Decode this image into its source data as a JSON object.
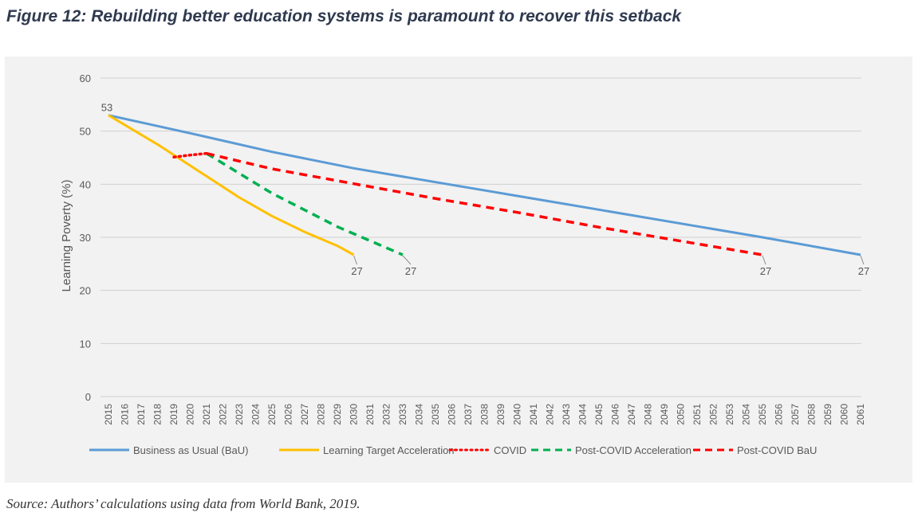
{
  "figure": {
    "title": "Figure 12: Rebuilding better education systems is paramount to recover this setback",
    "source": "Source: Authors’ calculations using data from World Bank, 2019."
  },
  "chart_data": {
    "type": "line",
    "title": "",
    "xlabel": "",
    "ylabel": "Learning Poverty (%)",
    "ylim": [
      0,
      60
    ],
    "yticks": [
      0,
      10,
      20,
      30,
      40,
      50,
      60
    ],
    "x": [
      "2015",
      "2016",
      "2017",
      "2018",
      "2019",
      "2020",
      "2021",
      "2022",
      "2023",
      "2024",
      "2025",
      "2026",
      "2027",
      "2028",
      "2029",
      "2030",
      "2031",
      "2032",
      "2033",
      "2034",
      "2035",
      "2036",
      "2037",
      "2038",
      "2039",
      "2040",
      "2041",
      "2042",
      "2043",
      "2044",
      "2045",
      "2046",
      "2047",
      "2048",
      "2049",
      "2050",
      "2051",
      "2052",
      "2053",
      "2054",
      "2055",
      "2056",
      "2057",
      "2058",
      "2059",
      "2060",
      "2061"
    ],
    "grid": true,
    "legend_position": "bottom",
    "series": [
      {
        "name": "Business as Usual (BaU)",
        "color": "#5b9bd5",
        "style": "solid",
        "points": [
          [
            2015,
            53
          ],
          [
            2020,
            49.6
          ],
          [
            2025,
            46.1
          ],
          [
            2030,
            43
          ],
          [
            2035,
            40.4
          ],
          [
            2040,
            37.8
          ],
          [
            2045,
            35.2
          ],
          [
            2050,
            32.6
          ],
          [
            2055,
            30
          ],
          [
            2061,
            26.7
          ]
        ]
      },
      {
        "name": "Learning Target Acceleration",
        "color": "#ffc000",
        "style": "solid",
        "points": [
          [
            2015,
            53
          ],
          [
            2018,
            47.5
          ],
          [
            2021,
            41.5
          ],
          [
            2023,
            37.5
          ],
          [
            2025,
            34
          ],
          [
            2027,
            31
          ],
          [
            2029,
            28.4
          ],
          [
            2030,
            26.7
          ]
        ]
      },
      {
        "name": "COVID",
        "color": "#ff0000",
        "style": "dotted",
        "points": [
          [
            2019,
            45.1
          ],
          [
            2020,
            45.5
          ],
          [
            2021,
            45.8
          ]
        ]
      },
      {
        "name": "Post-COVID Acceleration",
        "color": "#00b050",
        "style": "dashed",
        "points": [
          [
            2021,
            45.8
          ],
          [
            2025,
            38.3
          ],
          [
            2029,
            32
          ],
          [
            2033,
            26.7
          ]
        ]
      },
      {
        "name": "Post-COVID BaU",
        "color": "#ff0000",
        "style": "dashed",
        "points": [
          [
            2021,
            45.8
          ],
          [
            2025,
            42.9
          ],
          [
            2030,
            40.1
          ],
          [
            2035,
            37.3
          ],
          [
            2040,
            34.7
          ],
          [
            2045,
            31.9
          ],
          [
            2050,
            29.3
          ],
          [
            2055,
            26.7
          ]
        ]
      }
    ],
    "annotations": [
      {
        "text": "53",
        "x": 2015,
        "y": 53
      },
      {
        "text": "27",
        "x": 2030,
        "y": 26.7
      },
      {
        "text": "27",
        "x": 2033,
        "y": 26.7
      },
      {
        "text": "27",
        "x": 2055,
        "y": 26.7
      },
      {
        "text": "27",
        "x": 2061,
        "y": 26.7
      }
    ]
  }
}
